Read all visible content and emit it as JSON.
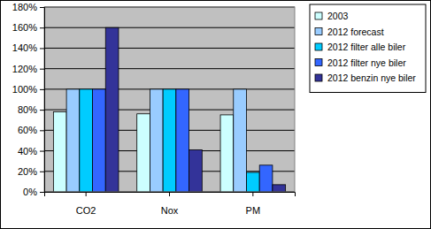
{
  "chart_data": {
    "type": "bar",
    "categories": [
      "CO2",
      "Nox",
      "PM"
    ],
    "series": [
      {
        "name": "2003",
        "color": "#ccffff",
        "values": [
          78,
          76,
          75
        ]
      },
      {
        "name": "2012 forecast",
        "color": "#99ccff",
        "values": [
          100,
          100,
          100
        ]
      },
      {
        "name": "2012 filter alle biler",
        "color": "#00ccff",
        "values": [
          100,
          100,
          19
        ]
      },
      {
        "name": "2012 filter nye biler",
        "color": "#3366ff",
        "values": [
          100,
          100,
          26
        ]
      },
      {
        "name": "2012 benzin nye biler",
        "color": "#333399",
        "values": [
          160,
          41,
          7
        ]
      }
    ],
    "ylim": [
      0,
      180
    ],
    "yticks": [
      {
        "value": 0,
        "label": "0%"
      },
      {
        "value": 20,
        "label": "20%"
      },
      {
        "value": 40,
        "label": "40%"
      },
      {
        "value": 60,
        "label": "60%"
      },
      {
        "value": 80,
        "label": "80%"
      },
      {
        "value": 100,
        "label": "100%"
      },
      {
        "value": 120,
        "label": "120%"
      },
      {
        "value": 140,
        "label": "140%"
      },
      {
        "value": 160,
        "label": "160%"
      },
      {
        "value": 180,
        "label": "180%"
      }
    ],
    "grid": true,
    "legend": "right"
  }
}
